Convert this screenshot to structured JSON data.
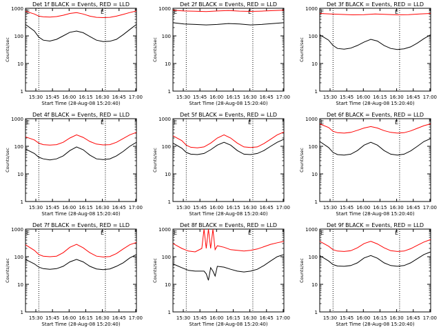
{
  "shared": {
    "xlabel": "Start Time (28-Aug-08 15:20:40)",
    "ylabel": "Counts/sec",
    "x_ticks": [
      "15:30",
      "15:45",
      "16:00",
      "16:15",
      "16:30",
      "16:45",
      "17:00"
    ],
    "y_ticks": [
      "1",
      "10",
      "100",
      "1000"
    ],
    "corner_labels": [
      "E",
      "E"
    ],
    "colors": {
      "events": "#000000",
      "lld": "#ff0000"
    }
  },
  "chart_data": [
    {
      "type": "line",
      "title": "Det 1f BLACK = Events, RED = LLD",
      "x_unit": "minutes since 15:20:40",
      "xlim": [
        0,
        100
      ],
      "ylim": [
        1,
        1000
      ],
      "y_scale": "log",
      "grid": false,
      "dotted_vlines_x": [
        12,
        72
      ],
      "series": [
        {
          "name": "Events",
          "color": "#000000",
          "x": [
            0,
            8,
            12,
            16,
            22,
            28,
            34,
            40,
            46,
            52,
            58,
            64,
            70,
            76,
            82,
            88,
            94,
            100
          ],
          "y": [
            260,
            150,
            90,
            70,
            65,
            75,
            100,
            135,
            150,
            130,
            95,
            70,
            62,
            64,
            75,
            110,
            170,
            260
          ]
        },
        {
          "name": "LLD",
          "color": "#ff0000",
          "x": [
            0,
            8,
            12,
            16,
            22,
            28,
            34,
            40,
            46,
            52,
            58,
            64,
            70,
            76,
            82,
            88,
            94,
            100
          ],
          "y": [
            780,
            620,
            520,
            490,
            480,
            500,
            560,
            650,
            700,
            620,
            520,
            470,
            460,
            470,
            520,
            600,
            700,
            800
          ]
        }
      ]
    },
    {
      "type": "line",
      "title": "Det 2f BLACK = Events, RED = LLD",
      "x_unit": "minutes since 15:20:40",
      "xlim": [
        0,
        100
      ],
      "ylim": [
        1,
        1000
      ],
      "y_scale": "log",
      "grid": false,
      "dotted_vlines_x": [
        12,
        72
      ],
      "series": [
        {
          "name": "Events",
          "color": "#000000",
          "x": [
            0,
            10,
            20,
            30,
            40,
            50,
            60,
            70,
            80,
            90,
            100
          ],
          "y": [
            300,
            270,
            260,
            250,
            260,
            280,
            270,
            250,
            260,
            280,
            300
          ]
        },
        {
          "name": "LLD",
          "color": "#ff0000",
          "x": [
            0,
            10,
            20,
            30,
            40,
            50,
            60,
            70,
            80,
            90,
            100
          ],
          "y": [
            850,
            800,
            780,
            760,
            800,
            830,
            790,
            770,
            790,
            820,
            850
          ]
        }
      ]
    },
    {
      "type": "line",
      "title": "Det 3f BLACK = Events, RED = LLD",
      "x_unit": "minutes since 15:20:40",
      "xlim": [
        0,
        100
      ],
      "ylim": [
        1,
        1000
      ],
      "y_scale": "log",
      "grid": false,
      "dotted_vlines_x": [
        12,
        72
      ],
      "series": [
        {
          "name": "Events",
          "color": "#000000",
          "x": [
            0,
            8,
            12,
            16,
            22,
            28,
            34,
            40,
            46,
            52,
            58,
            64,
            70,
            76,
            82,
            88,
            94,
            100
          ],
          "y": [
            110,
            70,
            45,
            35,
            33,
            36,
            45,
            60,
            75,
            65,
            45,
            35,
            32,
            34,
            40,
            55,
            80,
            110
          ]
        },
        {
          "name": "LLD",
          "color": "#ff0000",
          "x": [
            0,
            10,
            20,
            30,
            40,
            50,
            60,
            70,
            80,
            90,
            100
          ],
          "y": [
            650,
            620,
            600,
            580,
            590,
            620,
            600,
            580,
            590,
            620,
            650
          ]
        }
      ]
    },
    {
      "type": "line",
      "title": "Det 4f BLACK = Events, RED = LLD",
      "x_unit": "minutes since 15:20:40",
      "xlim": [
        0,
        100
      ],
      "ylim": [
        1,
        1000
      ],
      "y_scale": "log",
      "grid": false,
      "dotted_vlines_x": [
        12,
        72
      ],
      "series": [
        {
          "name": "Events",
          "color": "#000000",
          "x": [
            0,
            8,
            12,
            16,
            22,
            28,
            34,
            40,
            46,
            52,
            58,
            64,
            70,
            76,
            82,
            88,
            94,
            100
          ],
          "y": [
            80,
            55,
            40,
            35,
            32,
            35,
            45,
            70,
            95,
            75,
            48,
            35,
            33,
            35,
            45,
            65,
            100,
            140
          ]
        },
        {
          "name": "LLD",
          "color": "#ff0000",
          "x": [
            0,
            8,
            12,
            16,
            22,
            28,
            34,
            40,
            46,
            52,
            58,
            64,
            70,
            76,
            82,
            88,
            94,
            100
          ],
          "y": [
            220,
            170,
            130,
            115,
            110,
            115,
            140,
            200,
            260,
            210,
            150,
            120,
            112,
            115,
            140,
            190,
            260,
            320
          ]
        }
      ]
    },
    {
      "type": "line",
      "title": "Det 5f BLACK = Events, RED = LLD",
      "x_unit": "minutes since 15:20:40",
      "xlim": [
        0,
        100
      ],
      "ylim": [
        1,
        1000
      ],
      "y_scale": "log",
      "grid": false,
      "dotted_vlines_x": [
        12,
        72
      ],
      "series": [
        {
          "name": "Events",
          "color": "#000000",
          "x": [
            0,
            8,
            12,
            16,
            22,
            28,
            34,
            40,
            46,
            52,
            58,
            64,
            70,
            76,
            82,
            88,
            94,
            100
          ],
          "y": [
            130,
            85,
            60,
            52,
            50,
            55,
            75,
            110,
            140,
            110,
            70,
            52,
            50,
            55,
            70,
            100,
            140,
            180
          ]
        },
        {
          "name": "LLD",
          "color": "#ff0000",
          "x": [
            0,
            8,
            12,
            16,
            22,
            28,
            34,
            40,
            46,
            52,
            58,
            64,
            70,
            76,
            82,
            88,
            94,
            100
          ],
          "y": [
            240,
            160,
            110,
            92,
            88,
            95,
            130,
            200,
            260,
            200,
            130,
            95,
            90,
            95,
            125,
            180,
            260,
            330
          ]
        }
      ]
    },
    {
      "type": "line",
      "title": "Det 6f BLACK = Events, RED = LLD",
      "x_unit": "minutes since 15:20:40",
      "xlim": [
        0,
        100
      ],
      "ylim": [
        1,
        1000
      ],
      "y_scale": "log",
      "grid": false,
      "dotted_vlines_x": [
        12,
        72
      ],
      "series": [
        {
          "name": "Events",
          "color": "#000000",
          "x": [
            0,
            8,
            12,
            16,
            22,
            28,
            34,
            40,
            46,
            52,
            58,
            64,
            70,
            76,
            82,
            88,
            94,
            100
          ],
          "y": [
            150,
            90,
            60,
            50,
            48,
            52,
            70,
            110,
            140,
            110,
            70,
            52,
            48,
            52,
            68,
            100,
            150,
            190
          ]
        },
        {
          "name": "LLD",
          "color": "#ff0000",
          "x": [
            0,
            8,
            12,
            16,
            22,
            28,
            34,
            40,
            46,
            52,
            58,
            64,
            70,
            76,
            82,
            88,
            94,
            100
          ],
          "y": [
            650,
            480,
            350,
            310,
            300,
            320,
            380,
            460,
            520,
            460,
            370,
            320,
            300,
            310,
            360,
            450,
            560,
            650
          ]
        }
      ]
    },
    {
      "type": "line",
      "title": "Det 7f BLACK = Events, RED = LLD",
      "x_unit": "minutes since 15:20:40",
      "xlim": [
        0,
        100
      ],
      "ylim": [
        1,
        1000
      ],
      "y_scale": "log",
      "grid": false,
      "dotted_vlines_x": [
        12,
        72
      ],
      "series": [
        {
          "name": "Events",
          "color": "#000000",
          "x": [
            0,
            8,
            12,
            16,
            22,
            28,
            34,
            40,
            46,
            52,
            58,
            64,
            70,
            76,
            82,
            88,
            94,
            100
          ],
          "y": [
            80,
            55,
            42,
            37,
            35,
            37,
            45,
            65,
            80,
            65,
            45,
            36,
            34,
            36,
            45,
            60,
            90,
            120
          ]
        },
        {
          "name": "LLD",
          "color": "#ff0000",
          "x": [
            0,
            8,
            12,
            16,
            22,
            28,
            34,
            40,
            46,
            52,
            58,
            64,
            70,
            76,
            82,
            88,
            94,
            100
          ],
          "y": [
            270,
            170,
            120,
            105,
            100,
            105,
            140,
            220,
            280,
            210,
            140,
            105,
            98,
            102,
            130,
            190,
            270,
            330
          ]
        }
      ]
    },
    {
      "type": "line",
      "title": "Det 8f BLACK = Events, RED = LLD",
      "x_unit": "minutes since 15:20:40",
      "xlim": [
        0,
        100
      ],
      "ylim": [
        1,
        1000
      ],
      "y_scale": "log",
      "grid": false,
      "dotted_vlines_x": [
        12,
        72
      ],
      "series": [
        {
          "name": "Events",
          "color": "#000000",
          "x": [
            0,
            8,
            14,
            20,
            26,
            28,
            30,
            32,
            34,
            36,
            38,
            40,
            46,
            52,
            58,
            64,
            70,
            76,
            82,
            88,
            94,
            100
          ],
          "y": [
            55,
            40,
            32,
            30,
            30,
            30,
            24,
            14,
            40,
            30,
            20,
            45,
            42,
            35,
            30,
            28,
            30,
            35,
            48,
            70,
            100,
            120
          ]
        },
        {
          "name": "LLD",
          "color": "#ff0000",
          "x": [
            0,
            8,
            14,
            20,
            26,
            28,
            30,
            32,
            34,
            36,
            38,
            40,
            46,
            52,
            58,
            64,
            70,
            76,
            82,
            88,
            94,
            100
          ],
          "y": [
            300,
            200,
            160,
            150,
            200,
            1000,
            200,
            1000,
            200,
            1000,
            180,
            250,
            220,
            180,
            170,
            160,
            170,
            190,
            230,
            280,
            320,
            360
          ]
        }
      ]
    },
    {
      "type": "line",
      "title": "Det 9f BLACK = Events, RED = LLD",
      "x_unit": "minutes since 15:20:40",
      "xlim": [
        0,
        100
      ],
      "ylim": [
        1,
        1000
      ],
      "y_scale": "log",
      "grid": false,
      "dotted_vlines_x": [
        12,
        72
      ],
      "series": [
        {
          "name": "Events",
          "color": "#000000",
          "x": [
            0,
            8,
            12,
            16,
            22,
            28,
            34,
            40,
            46,
            52,
            58,
            64,
            70,
            76,
            82,
            88,
            94,
            100
          ],
          "y": [
            110,
            70,
            52,
            46,
            45,
            48,
            60,
            90,
            110,
            88,
            60,
            48,
            45,
            48,
            60,
            85,
            120,
            150
          ]
        },
        {
          "name": "LLD",
          "color": "#ff0000",
          "x": [
            0,
            8,
            12,
            16,
            22,
            28,
            34,
            40,
            46,
            52,
            58,
            64,
            70,
            76,
            82,
            88,
            94,
            100
          ],
          "y": [
            360,
            240,
            180,
            160,
            155,
            165,
            210,
            300,
            360,
            290,
            210,
            165,
            155,
            160,
            195,
            260,
            340,
            420
          ]
        }
      ]
    }
  ]
}
